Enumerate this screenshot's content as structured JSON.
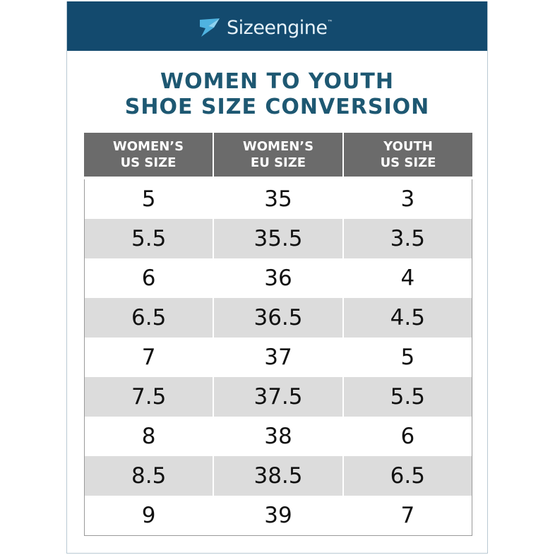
{
  "header": {
    "brand": "Sizeengine",
    "trademark": "™"
  },
  "title": [
    "WOMEN TO YOUTH",
    "SHOE SIZE CONVERSION"
  ],
  "table": {
    "columns": [
      [
        "WOMEN’S",
        "US SIZE"
      ],
      [
        "WOMEN’S",
        "EU SIZE"
      ],
      [
        "YOUTH",
        "US SIZE"
      ]
    ],
    "rows": [
      [
        "5",
        "35",
        "3"
      ],
      [
        "5.5",
        "35.5",
        "3.5"
      ],
      [
        "6",
        "36",
        "4"
      ],
      [
        "6.5",
        "36.5",
        "4.5"
      ],
      [
        "7",
        "37",
        "5"
      ],
      [
        "7.5",
        "37.5",
        "5.5"
      ],
      [
        "8",
        "38",
        "6"
      ],
      [
        "8.5",
        "38.5",
        "6.5"
      ],
      [
        "9",
        "39",
        "7"
      ]
    ]
  }
}
